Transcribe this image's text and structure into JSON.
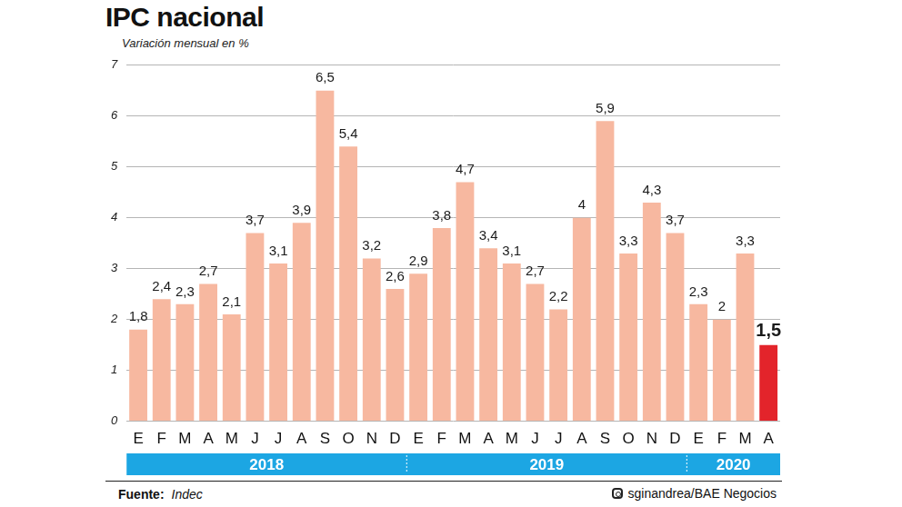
{
  "chart_data": {
    "type": "bar",
    "title": "IPC nacional",
    "subtitle": "Variación mensual en %",
    "categories": [
      "E",
      "F",
      "M",
      "A",
      "M",
      "J",
      "J",
      "A",
      "S",
      "O",
      "N",
      "D",
      "E",
      "F",
      "M",
      "A",
      "M",
      "J",
      "J",
      "A",
      "S",
      "O",
      "N",
      "D",
      "E",
      "F",
      "M",
      "A"
    ],
    "values": [
      1.8,
      2.4,
      2.3,
      2.7,
      2.1,
      3.7,
      3.1,
      3.9,
      6.5,
      5.4,
      3.2,
      2.6,
      2.9,
      3.8,
      4.7,
      3.4,
      3.1,
      2.7,
      2.2,
      4,
      5.9,
      3.3,
      4.3,
      3.7,
      2.3,
      2,
      3.3,
      1.5
    ],
    "value_labels": [
      "1,8",
      "2,4",
      "2,3",
      "2,7",
      "2,1",
      "3,7",
      "3,1",
      "3,9",
      "6,5",
      "5,4",
      "3,2",
      "2,6",
      "2,9",
      "3,8",
      "4,7",
      "3,4",
      "3,1",
      "2,7",
      "2,2",
      "4",
      "5,9",
      "3,3",
      "4,3",
      "3,7",
      "2,3",
      "2",
      "3,3",
      "1,5"
    ],
    "colors": [
      "#f7b8a0",
      "#f7b8a0",
      "#f7b8a0",
      "#f7b8a0",
      "#f7b8a0",
      "#f7b8a0",
      "#f7b8a0",
      "#f7b8a0",
      "#f7b8a0",
      "#f7b8a0",
      "#f7b8a0",
      "#f7b8a0",
      "#f7b8a0",
      "#f7b8a0",
      "#f7b8a0",
      "#f7b8a0",
      "#f7b8a0",
      "#f7b8a0",
      "#f7b8a0",
      "#f7b8a0",
      "#f7b8a0",
      "#f7b8a0",
      "#f7b8a0",
      "#f7b8a0",
      "#f7b8a0",
      "#f7b8a0",
      "#f7b8a0",
      "#e3242b"
    ],
    "ylim": [
      0,
      7
    ],
    "yticks": [
      0,
      1,
      2,
      3,
      4,
      5,
      6,
      7
    ],
    "grid": true,
    "data_labels": true,
    "year_groups": [
      {
        "label": "2018",
        "count": 12
      },
      {
        "label": "2019",
        "count": 12
      },
      {
        "label": "2020",
        "count": 4
      }
    ],
    "source_label": "Fuente:",
    "source": "Indec",
    "credit": "sginandrea/BAE Negocios"
  }
}
